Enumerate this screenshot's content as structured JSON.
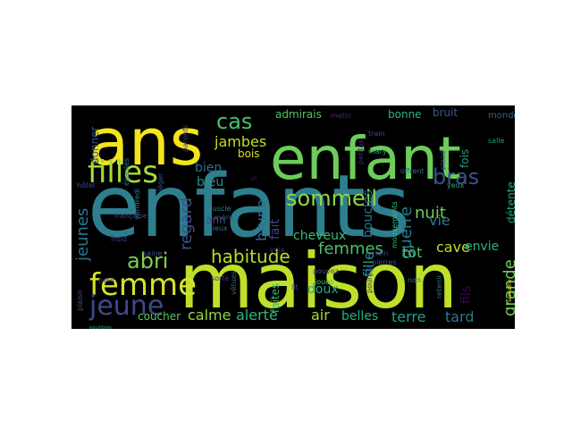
{
  "word_cloud": {
    "words": [
      {
        "text": "enfants",
        "color": "#2e7f8e"
      },
      {
        "text": "maison",
        "color": "#bfe02a"
      },
      {
        "text": "enfant",
        "color": "#6ccd59"
      },
      {
        "text": "ans",
        "color": "#f2e51d"
      },
      {
        "text": "femme",
        "color": "#d6e22b"
      },
      {
        "text": "filles",
        "color": "#a5db36"
      },
      {
        "text": "jeune",
        "color": "#3e4989"
      },
      {
        "text": "sommeil",
        "color": "#8fd744"
      },
      {
        "text": "bras",
        "color": "#3b528b"
      },
      {
        "text": "cas",
        "color": "#4ac16d"
      },
      {
        "text": "abri",
        "color": "#7ad151"
      },
      {
        "text": "habitude",
        "color": "#b5de2b"
      },
      {
        "text": "femmes",
        "color": "#4ac16d"
      },
      {
        "text": "jeunes",
        "color": "#2a788e"
      },
      {
        "text": "regard",
        "color": "#3b528b"
      },
      {
        "text": "guerre",
        "color": "#2a788e"
      },
      {
        "text": "nuit",
        "color": "#6ece58"
      },
      {
        "text": "grande",
        "color": "#6ece58"
      },
      {
        "text": "tôt",
        "color": "#48c16e"
      },
      {
        "text": "vie",
        "color": "#2a788e"
      },
      {
        "text": "fille",
        "color": "#21918c"
      },
      {
        "text": "brune",
        "color": "#2c728e"
      },
      {
        "text": "terre",
        "color": "#1fa188"
      },
      {
        "text": "tard",
        "color": "#2a788e"
      },
      {
        "text": "alerte",
        "color": "#35b779"
      },
      {
        "text": "calme",
        "color": "#95d840"
      },
      {
        "text": "air",
        "color": "#a2da37"
      },
      {
        "text": "belles",
        "color": "#28ae80"
      },
      {
        "text": "doux",
        "color": "#25ac82"
      },
      {
        "text": "cave",
        "color": "#b8de29"
      },
      {
        "text": "envie",
        "color": "#2db27d"
      },
      {
        "text": "jambes",
        "color": "#c2df23"
      },
      {
        "text": "bien",
        "color": "#2e6e8e"
      },
      {
        "text": "bleu",
        "color": "#21908d"
      },
      {
        "text": "bois",
        "color": "#d8e219"
      },
      {
        "text": "fait",
        "color": "#404688"
      },
      {
        "text": "cheveux",
        "color": "#3dbc74"
      },
      {
        "text": "boucles",
        "color": "#2c728e"
      },
      {
        "text": "fils",
        "color": "#440154"
      },
      {
        "text": "bonne",
        "color": "#2fb47c"
      },
      {
        "text": "bruit",
        "color": "#38588c"
      },
      {
        "text": "admirais",
        "color": "#52c569"
      },
      {
        "text": "donner",
        "color": "#3b528b"
      },
      {
        "text": "coucher",
        "color": "#5ac864"
      },
      {
        "text": "ann",
        "color": "#3b528b"
      },
      {
        "text": "faites",
        "color": "#35b779"
      },
      {
        "text": "détente",
        "color": "#22a884"
      },
      {
        "text": "fois",
        "color": "#1f9e89"
      },
      {
        "text": "monde",
        "color": "#33638d"
      },
      {
        "text": "matin",
        "color": "#482878"
      },
      {
        "text": "train",
        "color": "#3e4989"
      },
      {
        "text": "mary",
        "color": "#20a486"
      },
      {
        "text": "petites",
        "color": "#482878"
      },
      {
        "text": "offrent",
        "color": "#2c728e"
      },
      {
        "text": "yeux",
        "color": "#22a884"
      },
      {
        "text": "salle",
        "color": "#1f9e89"
      },
      {
        "text": "place",
        "color": "#3b528b"
      },
      {
        "text": "mouvements",
        "color": "#3aba76"
      },
      {
        "text": "épaules",
        "color": "#2e6e8e"
      },
      {
        "text": "léger",
        "color": "#3b528b"
      },
      {
        "text": "parents",
        "color": "#46327e"
      },
      {
        "text": "vit",
        "color": "#481f70"
      },
      {
        "text": "hôtel",
        "color": "#3e4989"
      },
      {
        "text": "vendredi",
        "color": "#2c728e"
      },
      {
        "text": "muscle",
        "color": "#24878e"
      },
      {
        "text": "mère",
        "color": "#3b528b"
      },
      {
        "text": "mieux",
        "color": "#2a788e"
      },
      {
        "text": "voix",
        "color": "#46337e"
      },
      {
        "text": "française",
        "color": "#3e4989"
      },
      {
        "text": "froid",
        "color": "#433e85"
      },
      {
        "text": "saine",
        "color": "#3b528b"
      },
      {
        "text": "petit",
        "color": "#482878"
      },
      {
        "text": "sorte",
        "color": "#472d7b"
      },
      {
        "text": "vêtues",
        "color": "#33638d"
      },
      {
        "text": "joues",
        "color": "#4ac16d"
      },
      {
        "text": "lit",
        "color": "#433e85"
      },
      {
        "text": "pouvez",
        "color": "#3b528b"
      },
      {
        "text": "loin",
        "color": "#3e4989"
      },
      {
        "text": "pierres",
        "color": "#3b528b"
      },
      {
        "text": "pourrez",
        "color": "#472d7b"
      },
      {
        "text": "non",
        "color": "#2c728e"
      },
      {
        "text": "retenir",
        "color": "#2c728e"
      },
      {
        "text": "semaine",
        "color": "#f1e51d"
      },
      {
        "text": "plaisir",
        "color": "#3b528b"
      },
      {
        "text": "équilibrée",
        "color": "#1f9e89"
      }
    ]
  }
}
